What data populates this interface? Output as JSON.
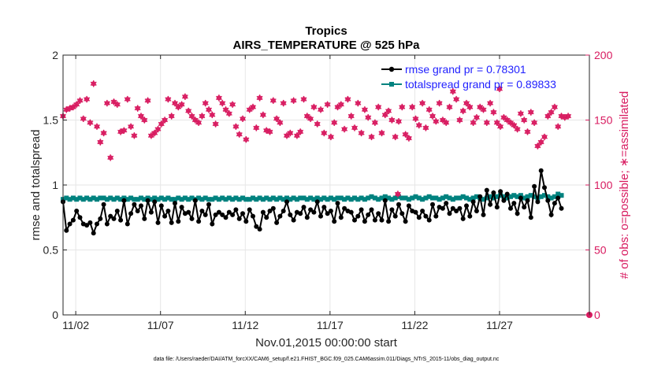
{
  "chart_data": {
    "type": "line",
    "title": "Tropics",
    "subtitle": "AIRS_TEMPERATURE @ 525 hPa",
    "xlabel": "Nov.01,2015 00:00:00 start",
    "ylabel": "rmse and totalspread",
    "y2label": "# of obs: o=possible; ∗=assimilated",
    "x_tick_labels": [
      "11/02",
      "11/07",
      "11/12",
      "11/17",
      "11/22",
      "11/27"
    ],
    "x_tick_days": [
      1,
      6,
      11,
      16,
      21,
      26
    ],
    "xlim": [
      0.25,
      31.3
    ],
    "ylim": [
      0,
      2
    ],
    "y_ticks": [
      0,
      0.5,
      1,
      1.5,
      2
    ],
    "y_tick_labels": [
      "0",
      "0.5",
      "1",
      "1.5",
      "2"
    ],
    "y2lim": [
      0,
      200
    ],
    "y2_ticks": [
      0,
      50,
      100,
      150,
      200
    ],
    "y2_tick_labels": [
      "0",
      "50",
      "100",
      "150",
      "200"
    ],
    "grid": true,
    "legend_position": "top-right",
    "footnote": "data file: /Users/raeder/DAI/ATM_forcXX/CAM6_setup/f.e21.FHIST_BGC.f09_025.CAM6assim.011/Diags_NTrS_2015-11/obs_diag_output.nc",
    "colors": {
      "rmse": "#000000",
      "spread": "#00827f",
      "obs": "#d81b60",
      "legend_text": "#1f1fff"
    },
    "series": [
      {
        "name": "rmse grand pr = 0.78301",
        "axis": "left",
        "values": [
          0.87,
          0.65,
          0.7,
          0.73,
          0.8,
          0.75,
          0.7,
          0.69,
          0.71,
          0.63,
          0.7,
          0.74,
          0.85,
          0.7,
          0.76,
          0.74,
          0.8,
          0.73,
          0.88,
          0.7,
          0.78,
          0.85,
          0.8,
          0.84,
          0.74,
          0.88,
          0.79,
          0.87,
          0.71,
          0.84,
          0.76,
          0.8,
          0.71,
          0.86,
          0.72,
          0.83,
          0.78,
          0.79,
          0.74,
          0.88,
          0.72,
          0.8,
          0.77,
          0.85,
          0.7,
          0.77,
          0.79,
          0.77,
          0.75,
          0.79,
          0.77,
          0.81,
          0.74,
          0.78,
          0.72,
          0.81,
          0.76,
          0.68,
          0.66,
          0.79,
          0.75,
          0.8,
          0.82,
          0.71,
          0.76,
          0.8,
          0.87,
          0.77,
          0.73,
          0.79,
          0.78,
          0.83,
          0.75,
          0.81,
          0.79,
          0.87,
          0.76,
          0.83,
          0.78,
          0.8,
          0.72,
          0.86,
          0.75,
          0.82,
          0.8,
          0.79,
          0.73,
          0.76,
          0.81,
          0.72,
          0.77,
          0.81,
          0.73,
          0.78,
          0.73,
          0.88,
          0.72,
          0.81,
          0.76,
          0.85,
          0.78,
          0.72,
          0.84,
          0.8,
          0.79,
          0.75,
          0.8,
          0.76,
          0.73,
          0.85,
          0.76,
          0.83,
          0.82,
          0.86,
          0.78,
          0.82,
          0.8,
          0.82,
          0.74,
          0.84,
          0.76,
          0.87,
          0.8,
          0.91,
          0.77,
          0.96,
          0.85,
          0.94,
          0.83,
          0.95,
          0.88,
          0.93,
          0.82,
          0.86,
          0.78,
          0.9,
          0.83,
          0.88,
          0.75,
          0.99,
          0.87,
          1.11,
          0.98,
          0.88,
          0.77,
          0.86,
          0.9,
          0.82
        ]
      },
      {
        "name": "totalspread grand pr = 0.89833",
        "axis": "left",
        "values": [
          0.89,
          0.9,
          0.89,
          0.9,
          0.89,
          0.9,
          0.89,
          0.9,
          0.89,
          0.9,
          0.89,
          0.9,
          0.9,
          0.89,
          0.9,
          0.89,
          0.9,
          0.89,
          0.9,
          0.89,
          0.9,
          0.89,
          0.89,
          0.9,
          0.89,
          0.9,
          0.89,
          0.9,
          0.89,
          0.9,
          0.89,
          0.9,
          0.89,
          0.89,
          0.9,
          0.89,
          0.9,
          0.89,
          0.9,
          0.89,
          0.9,
          0.89,
          0.9,
          0.89,
          0.89,
          0.9,
          0.89,
          0.9,
          0.89,
          0.9,
          0.89,
          0.9,
          0.89,
          0.9,
          0.89,
          0.89,
          0.9,
          0.89,
          0.9,
          0.89,
          0.9,
          0.89,
          0.9,
          0.89,
          0.9,
          0.89,
          0.9,
          0.89,
          0.9,
          0.89,
          0.9,
          0.9,
          0.89,
          0.9,
          0.89,
          0.9,
          0.89,
          0.9,
          0.89,
          0.9,
          0.89,
          0.9,
          0.9,
          0.89,
          0.9,
          0.89,
          0.9,
          0.89,
          0.9,
          0.89,
          0.9,
          0.91,
          0.9,
          0.89,
          0.9,
          0.91,
          0.9,
          0.89,
          0.9,
          0.91,
          0.9,
          0.9,
          0.89,
          0.9,
          0.91,
          0.9,
          0.89,
          0.9,
          0.91,
          0.9,
          0.9,
          0.89,
          0.9,
          0.91,
          0.9,
          0.89,
          0.9,
          0.9,
          0.91,
          0.9,
          0.89,
          0.9,
          0.91,
          0.9,
          0.89,
          0.9,
          0.91,
          0.9,
          0.91,
          0.92,
          0.91,
          0.9,
          0.91,
          0.92,
          0.91,
          0.92,
          0.9,
          0.91,
          0.92,
          0.91,
          0.9,
          0.91,
          0.92,
          0.91,
          0.9,
          0.91,
          0.93,
          0.92
        ]
      },
      {
        "name": "# of obs",
        "axis": "right",
        "marker": "asterisk",
        "values": [
          153,
          158,
          159,
          160,
          162,
          165,
          151,
          166,
          148,
          178,
          145,
          133,
          140,
          163,
          121,
          164,
          162,
          141,
          142,
          166,
          145,
          138,
          159,
          153,
          150,
          165,
          138,
          140,
          143,
          147,
          150,
          166,
          153,
          163,
          160,
          162,
          168,
          157,
          153,
          150,
          148,
          153,
          163,
          158,
          154,
          147,
          167,
          163,
          158,
          155,
          162,
          145,
          139,
          151,
          135,
          158,
          160,
          144,
          167,
          154,
          142,
          141,
          165,
          151,
          148,
          163,
          138,
          140,
          165,
          138,
          141,
          166,
          153,
          151,
          160,
          147,
          158,
          140,
          162,
          137,
          148,
          160,
          162,
          143,
          166,
          153,
          144,
          163,
          140,
          158,
          152,
          137,
          148,
          160,
          140,
          154,
          157,
          150,
          137,
          149,
          160,
          139,
          136,
          160,
          151,
          146,
          163,
          144,
          158,
          153,
          149,
          163,
          150,
          148,
          160,
          172,
          166,
          150,
          157,
          163,
          160,
          148,
          152,
          160,
          158,
          148,
          163,
          156,
          148,
          145,
          152,
          150,
          148,
          146,
          143,
          155,
          150,
          141,
          156,
          148,
          130,
          133,
          137,
          153,
          156,
          160,
          145,
          153,
          152,
          153
        ],
        "highlighted": [
          {
            "day": 20.0,
            "value": 93
          },
          {
            "day": 26.0,
            "value": 174
          }
        ]
      }
    ]
  }
}
